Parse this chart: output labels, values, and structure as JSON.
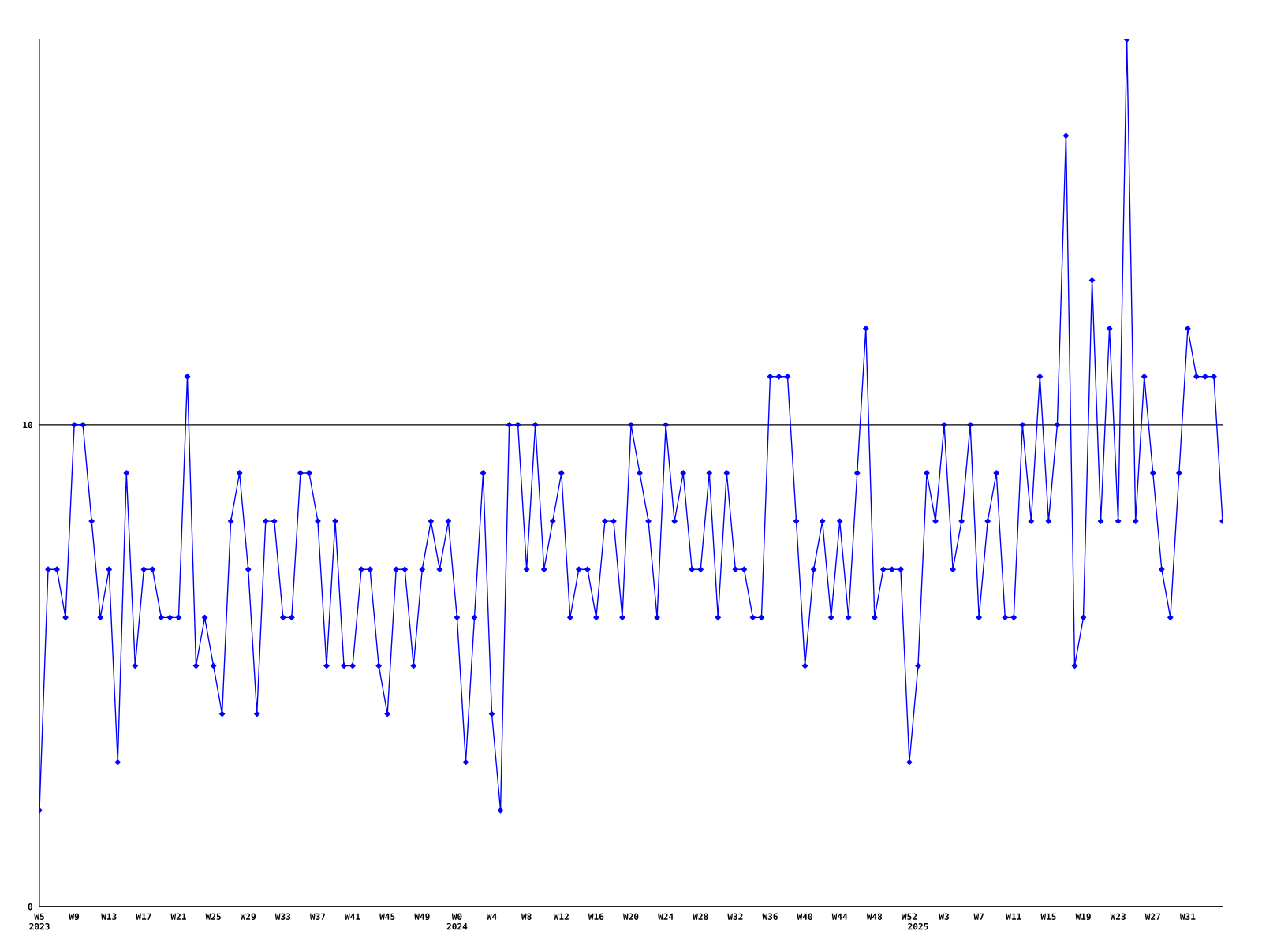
{
  "chart_data": {
    "type": "line",
    "categories": [
      "W5\n2023",
      null,
      null,
      null,
      "W9",
      null,
      null,
      null,
      "W13",
      null,
      null,
      null,
      "W17",
      null,
      null,
      null,
      "W21",
      null,
      null,
      null,
      "W25",
      null,
      null,
      null,
      "W29",
      null,
      null,
      null,
      "W33",
      null,
      null,
      null,
      "W37",
      null,
      null,
      null,
      "W41",
      null,
      null,
      null,
      "W45",
      null,
      null,
      null,
      "W49",
      null,
      null,
      null,
      "W0\n2024",
      null,
      null,
      null,
      "W4",
      null,
      null,
      null,
      "W8",
      null,
      null,
      null,
      "W12",
      null,
      null,
      null,
      "W16",
      null,
      null,
      null,
      "W20",
      null,
      null,
      null,
      "W24",
      null,
      null,
      null,
      "W28",
      null,
      null,
      null,
      "W32",
      null,
      null,
      null,
      "W36",
      null,
      null,
      null,
      "W40",
      null,
      null,
      null,
      "W44",
      null,
      null,
      null,
      "W48",
      null,
      null,
      null,
      "W52",
      "\n2025",
      null,
      null,
      "W3",
      null,
      null,
      null,
      "W7",
      null,
      null,
      null,
      "W11",
      null,
      null,
      null,
      "W15",
      null,
      null,
      null,
      "W19",
      null,
      null,
      null,
      "W23",
      null,
      null,
      null,
      "W27",
      null,
      null,
      null,
      "W31",
      null,
      null,
      null,
      null
    ],
    "series": [
      {
        "color": "#0000ff",
        "values": [
          2,
          7,
          7,
          6,
          10,
          10,
          8,
          6,
          7,
          3,
          9,
          5,
          7,
          7,
          6,
          6,
          6,
          11,
          5,
          6,
          5,
          4,
          8,
          9,
          7,
          4,
          8,
          8,
          6,
          6,
          9,
          9,
          8,
          5,
          8,
          5,
          5,
          7,
          7,
          5,
          4,
          7,
          7,
          5,
          7,
          8,
          7,
          8,
          6,
          3,
          6,
          9,
          4,
          2,
          10,
          10,
          7,
          10,
          7,
          8,
          9,
          6,
          7,
          7,
          6,
          8,
          8,
          6,
          10,
          9,
          8,
          6,
          10,
          8,
          9,
          7,
          7,
          9,
          6,
          9,
          7,
          7,
          6,
          6,
          11,
          11,
          11,
          8,
          5,
          7,
          8,
          6,
          8,
          6,
          9,
          12,
          6,
          7,
          7,
          7,
          3,
          5,
          9,
          8,
          10,
          7,
          8,
          10,
          6,
          8,
          9,
          6,
          6,
          10,
          8,
          11,
          8,
          10,
          16,
          5,
          6,
          13,
          8,
          12,
          8,
          18,
          8,
          11,
          9,
          7,
          6,
          9,
          12,
          11,
          11,
          11,
          8
        ]
      }
    ],
    "ylim": [
      0,
      18
    ],
    "yticks": [
      0,
      10
    ],
    "grid": "y",
    "marker": "diamond",
    "line_style": "solid"
  }
}
